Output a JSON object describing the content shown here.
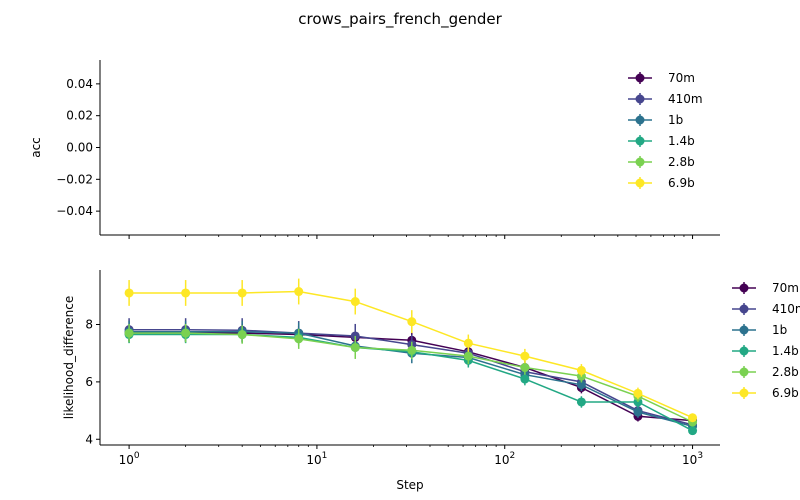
{
  "figure": {
    "title": "crows_pairs_french_gender"
  },
  "chart_data": [
    {
      "type": "line",
      "ylabel": "acc",
      "xlabel": "",
      "xscale": "log",
      "xlim": [
        0.7,
        1400
      ],
      "ylim": [
        -0.055,
        0.055
      ],
      "yticks": [
        -0.04,
        -0.02,
        0.0,
        0.02,
        0.04
      ],
      "ytick_labels": [
        "−0.04",
        "−0.02",
        "0.00",
        "0.02",
        "0.04"
      ],
      "legend_position": "upper-right",
      "series": [
        {
          "name": "70m",
          "x": [],
          "y": []
        },
        {
          "name": "410m",
          "x": [],
          "y": []
        },
        {
          "name": "1b",
          "x": [],
          "y": []
        },
        {
          "name": "1.4b",
          "x": [],
          "y": []
        },
        {
          "name": "2.8b",
          "x": [],
          "y": []
        },
        {
          "name": "6.9b",
          "x": [],
          "y": []
        }
      ]
    },
    {
      "type": "line",
      "ylabel": "likelihood_difference",
      "xlabel": "Step",
      "xscale": "log",
      "xlim": [
        0.7,
        1400
      ],
      "ylim": [
        3.8,
        9.9
      ],
      "yticks": [
        4,
        6,
        8
      ],
      "ytick_labels": [
        "4",
        "6",
        "8"
      ],
      "xticks": [
        1,
        10,
        100,
        1000
      ],
      "xtick_labels": [
        [
          "10",
          "0"
        ],
        [
          "10",
          "1"
        ],
        [
          "10",
          "2"
        ],
        [
          "10",
          "3"
        ]
      ],
      "legend_position": "outside-right",
      "series": [
        {
          "name": "70m",
          "x": [
            1,
            2,
            4,
            8,
            16,
            32,
            64,
            128,
            256,
            512,
            1000
          ],
          "y": [
            7.7,
            7.7,
            7.7,
            7.65,
            7.55,
            7.45,
            7.05,
            6.5,
            5.8,
            4.8,
            4.65
          ],
          "err": [
            0.3,
            0.3,
            0.3,
            0.3,
            0.3,
            0.28,
            0.25,
            0.22,
            0.2,
            0.18,
            0.15
          ]
        },
        {
          "name": "410m",
          "x": [
            1,
            2,
            4,
            8,
            16,
            32,
            64,
            128,
            256,
            512,
            1000
          ],
          "y": [
            7.82,
            7.82,
            7.8,
            7.7,
            7.6,
            7.3,
            7.0,
            6.35,
            6.0,
            5.0,
            4.5
          ],
          "err": [
            0.4,
            0.4,
            0.42,
            0.42,
            0.42,
            0.35,
            0.3,
            0.25,
            0.22,
            0.2,
            0.18
          ]
        },
        {
          "name": "1b",
          "x": [
            1,
            2,
            4,
            8,
            16,
            32,
            64,
            128,
            256,
            512,
            1000
          ],
          "y": [
            7.75,
            7.75,
            7.75,
            7.7,
            7.25,
            7.0,
            6.85,
            6.25,
            5.9,
            4.95,
            4.45
          ],
          "err": [
            0.38,
            0.38,
            0.38,
            0.38,
            0.36,
            0.35,
            0.3,
            0.25,
            0.22,
            0.2,
            0.18
          ]
        },
        {
          "name": "1.4b",
          "x": [
            1,
            2,
            4,
            8,
            16,
            32,
            64,
            128,
            256,
            512,
            1000
          ],
          "y": [
            7.65,
            7.65,
            7.65,
            7.55,
            7.2,
            7.05,
            6.75,
            6.1,
            5.3,
            5.3,
            4.3
          ],
          "err": [
            0.3,
            0.3,
            0.3,
            0.3,
            0.3,
            0.28,
            0.25,
            0.22,
            0.2,
            0.2,
            0.15
          ]
        },
        {
          "name": "2.8b",
          "x": [
            1,
            2,
            4,
            8,
            16,
            32,
            64,
            128,
            256,
            512,
            1000
          ],
          "y": [
            7.7,
            7.7,
            7.65,
            7.5,
            7.2,
            7.1,
            6.9,
            6.5,
            6.2,
            5.5,
            4.6
          ],
          "err": [
            0.32,
            0.32,
            0.32,
            0.35,
            0.4,
            0.3,
            0.28,
            0.25,
            0.22,
            0.2,
            0.15
          ]
        },
        {
          "name": "6.9b",
          "x": [
            1,
            2,
            4,
            8,
            16,
            32,
            64,
            128,
            256,
            512,
            1000
          ],
          "y": [
            9.1,
            9.1,
            9.1,
            9.15,
            8.8,
            8.1,
            7.35,
            6.9,
            6.4,
            5.6,
            4.75
          ],
          "err": [
            0.45,
            0.45,
            0.45,
            0.45,
            0.45,
            0.4,
            0.3,
            0.25,
            0.22,
            0.2,
            0.15
          ]
        }
      ]
    }
  ],
  "colors": {
    "70m": "#440154",
    "410m": "#46468e",
    "1b": "#2c728e",
    "1.4b": "#22a884",
    "2.8b": "#7ad151",
    "6.9b": "#fde725"
  }
}
